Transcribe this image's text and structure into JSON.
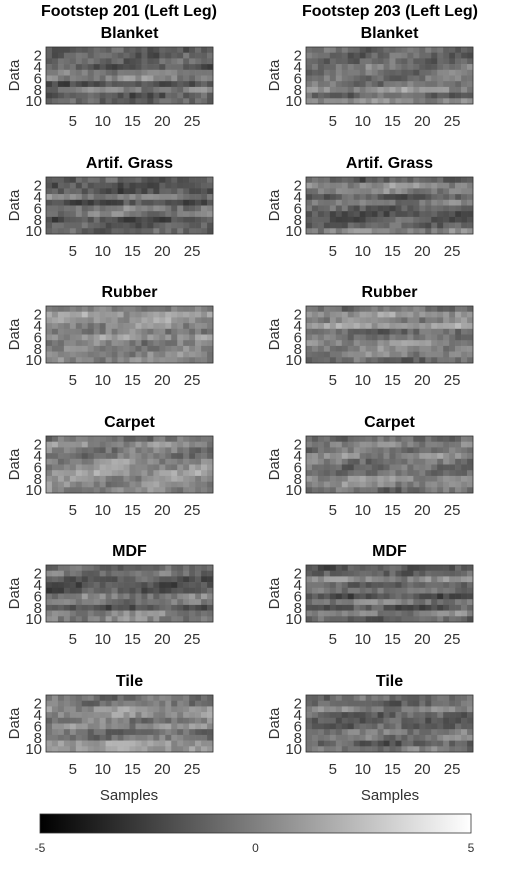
{
  "figure": {
    "columns": [
      "Footstep 201 (Left Leg)",
      "Footstep 203 (Left Leg)"
    ],
    "xlabel": "Samples",
    "ylabel": "Data"
  },
  "chart_data": {
    "type": "heatmap",
    "n_rows": 10,
    "n_cols": 28,
    "xticks": [
      5,
      10,
      15,
      20,
      25
    ],
    "yticks": [
      2,
      4,
      6,
      8,
      10
    ],
    "clim": [
      -5,
      5
    ],
    "colormap": "gray",
    "colorbar_ticks": [
      "-5",
      "0",
      "5"
    ],
    "panels": [
      {
        "column": "Footstep 201 (Left Leg)",
        "title": "Blanket",
        "seed": 11,
        "bias": -0.6
      },
      {
        "column": "Footstep 203 (Left Leg)",
        "title": "Blanket",
        "seed": 21,
        "bias": -0.2
      },
      {
        "column": "Footstep 201 (Left Leg)",
        "title": "Artif. Grass",
        "seed": 31,
        "bias": -0.8
      },
      {
        "column": "Footstep 203 (Left Leg)",
        "title": "Artif. Grass",
        "seed": 41,
        "bias": -0.7
      },
      {
        "column": "Footstep 201 (Left Leg)",
        "title": "Rubber",
        "seed": 51,
        "bias": 0.3
      },
      {
        "column": "Footstep 203 (Left Leg)",
        "title": "Rubber",
        "seed": 61,
        "bias": 0.1
      },
      {
        "column": "Footstep 201 (Left Leg)",
        "title": "Carpet",
        "seed": 71,
        "bias": 0.0
      },
      {
        "column": "Footstep 203 (Left Leg)",
        "title": "Carpet",
        "seed": 81,
        "bias": -0.1
      },
      {
        "column": "Footstep 201 (Left Leg)",
        "title": "MDF",
        "seed": 91,
        "bias": -0.5
      },
      {
        "column": "Footstep 203 (Left Leg)",
        "title": "MDF",
        "seed": 101,
        "bias": -0.9
      },
      {
        "column": "Footstep 201 (Left Leg)",
        "title": "Tile",
        "seed": 111,
        "bias": 0.1
      },
      {
        "column": "Footstep 203 (Left Leg)",
        "title": "Tile",
        "seed": 121,
        "bias": -0.3
      }
    ]
  }
}
